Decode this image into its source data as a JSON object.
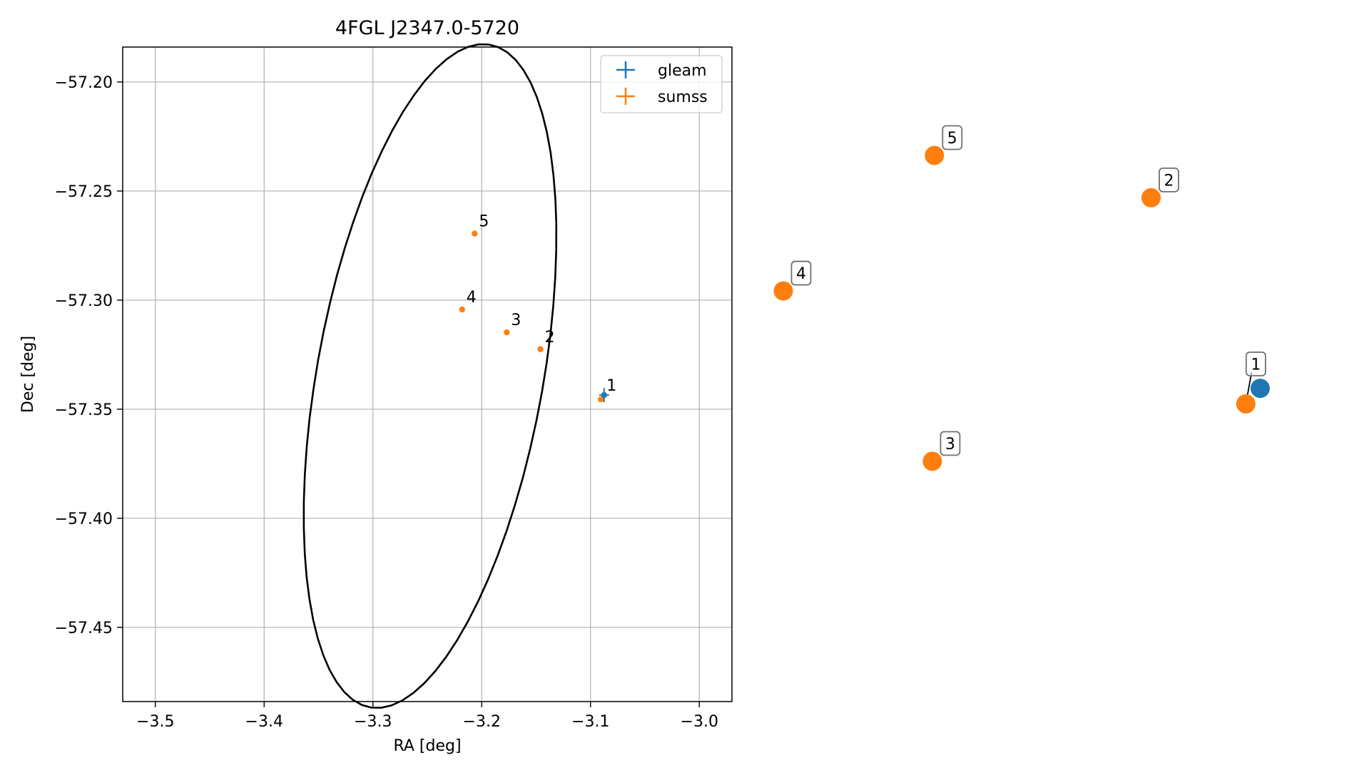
{
  "chart_data": [
    {
      "type": "scatter",
      "title": "4FGL J2347.0-5720",
      "xlabel": "RA [deg]",
      "ylabel": "Dec [deg]",
      "xlim": [
        -3.53,
        -2.97
      ],
      "ylim": [
        -57.484,
        -57.184
      ],
      "xticks": [
        -3.5,
        -3.4,
        -3.3,
        -3.2,
        -3.1,
        -3.0
      ],
      "xtick_labels": [
        "−3.5",
        "−3.4",
        "−3.3",
        "−3.2",
        "−3.1",
        "−3.0"
      ],
      "yticks": [
        -57.2,
        -57.25,
        -57.3,
        -57.35,
        -57.4,
        -57.45
      ],
      "ytick_labels": [
        "−57.20",
        "−57.25",
        "−57.30",
        "−57.35",
        "−57.40",
        "−57.45"
      ],
      "grid": true,
      "legend_position": "top-right",
      "series": [
        {
          "name": "gleam",
          "color": "#1f77b4",
          "marker": "errorbar",
          "points": [
            {
              "label": "1",
              "x": -3.0875,
              "y": -57.3435
            }
          ]
        },
        {
          "name": "sumss",
          "color": "#ff7f0e",
          "marker": "errorbar",
          "points": [
            {
              "label": "1",
              "x": -3.0905,
              "y": -57.3455
            },
            {
              "label": "2",
              "x": -3.146,
              "y": -57.3225
            },
            {
              "label": "3",
              "x": -3.177,
              "y": -57.3148
            },
            {
              "label": "4",
              "x": -3.218,
              "y": -57.3043
            },
            {
              "label": "5",
              "x": -3.2065,
              "y": -57.2695
            }
          ]
        }
      ],
      "ellipse": {
        "color": "#000000",
        "center_x": -3.2475,
        "center_y": -57.3348,
        "half_axis_a": 0.0972,
        "half_axis_b": 0.1649,
        "rotation_deg": -28.5
      }
    },
    {
      "type": "scatter",
      "axes_visible": false,
      "series": [
        {
          "name": "gleam",
          "color": "#1f77b4",
          "points": [
            {
              "label": "1",
              "x": 0.931,
              "y": 0.405
            }
          ]
        },
        {
          "name": "sumss",
          "color": "#ff7f0e",
          "points": [
            {
              "label": "1",
              "x": 0.903,
              "y": 0.372
            },
            {
              "label": "2",
              "x": 0.718,
              "y": 0.81
            },
            {
              "label": "3",
              "x": 0.291,
              "y": 0.25
            },
            {
              "label": "4",
              "x": 0.0,
              "y": 0.612
            },
            {
              "label": "5",
              "x": 0.295,
              "y": 0.9
            }
          ]
        }
      ],
      "label_boxes": [
        "1",
        "2",
        "3",
        "4",
        "5"
      ]
    }
  ]
}
